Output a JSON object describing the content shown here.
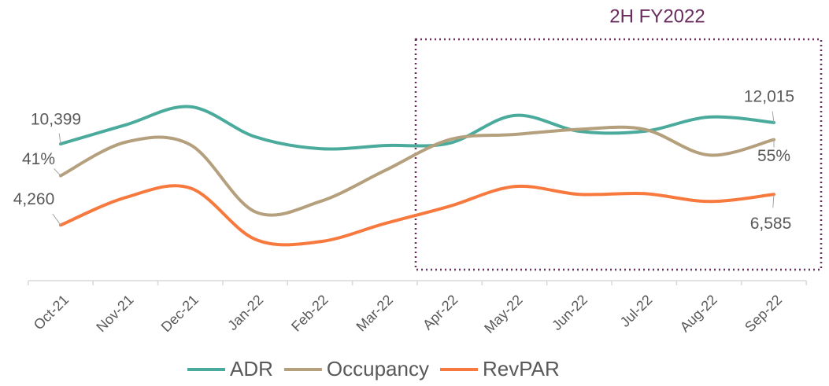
{
  "chart_data": {
    "type": "line",
    "annotation": "2H FY2022",
    "categories": [
      "Oct-21",
      "Nov-21",
      "Dec-21",
      "Jan-22",
      "Feb-22",
      "Mar-22",
      "Apr-22",
      "May-22",
      "Jun-22",
      "Jul-22",
      "Aug-22",
      "Sep-22"
    ],
    "ylim": [
      0,
      19500
    ],
    "y2lim": [
      0,
      100
    ],
    "series": [
      {
        "name": "ADR",
        "color": "#4aab9c",
        "values": [
          10399,
          11835,
          13212,
          10938,
          10040,
          10279,
          10459,
          12554,
          11357,
          11357,
          12434,
          12015
        ],
        "value_labels": [
          "10,399",
          null,
          null,
          null,
          null,
          null,
          null,
          null,
          null,
          null,
          null,
          "12,015"
        ]
      },
      {
        "name": "Occupancy",
        "color": "#b5a07e",
        "axis": "y2",
        "values": [
          41,
          54,
          53,
          27,
          31,
          43,
          55,
          57,
          59,
          59,
          49,
          55
        ],
        "value_labels": [
          "41%",
          null,
          null,
          null,
          null,
          null,
          null,
          null,
          null,
          null,
          null,
          "55%"
        ]
      },
      {
        "name": "RevPAR",
        "color": "#f7793d",
        "values": [
          4260,
          6346,
          7061,
          3187,
          3008,
          4379,
          5690,
          7180,
          6584,
          6644,
          6048,
          6585
        ],
        "value_labels": [
          "4,260",
          null,
          null,
          null,
          null,
          null,
          null,
          null,
          null,
          null,
          null,
          "6,585"
        ]
      }
    ]
  }
}
